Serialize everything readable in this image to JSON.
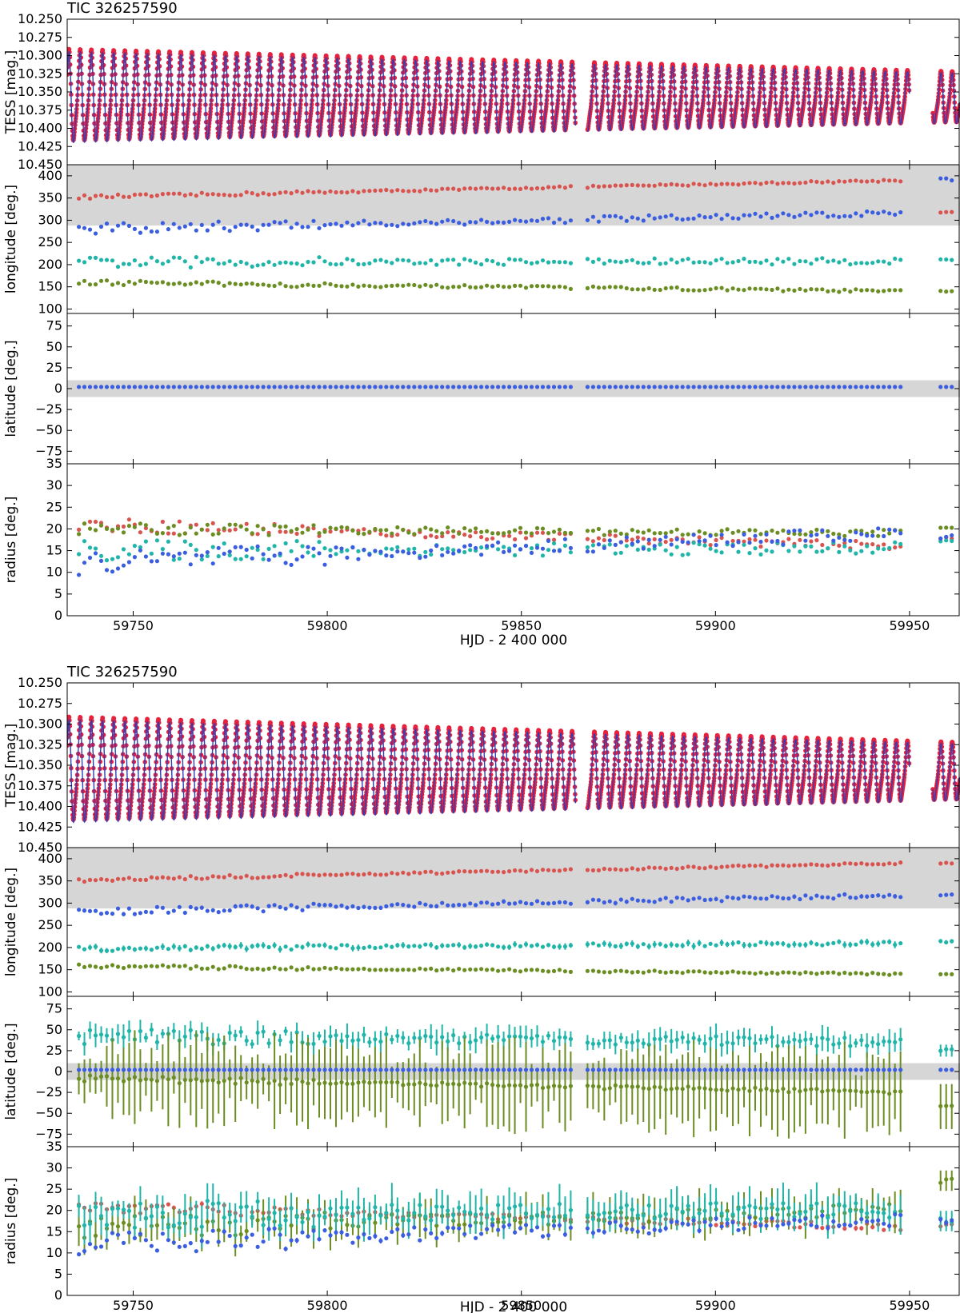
{
  "chart_data": [
    {
      "type": "composite",
      "figure": "top",
      "title": "TIC 326257590",
      "xlabel": "HJD - 2 400 000",
      "xlim": [
        59733,
        59963
      ],
      "xticks": [
        59750,
        59800,
        59850,
        59900,
        59950
      ],
      "gaps": [
        [
          59864,
          59867
        ],
        [
          59950,
          59956
        ]
      ],
      "panels": [
        {
          "kind": "lightcurve",
          "ylabel": "TESS [mag.]",
          "ylim": [
            10.45,
            10.25
          ],
          "yticks": [
            "10.250",
            "10.275",
            "10.300",
            "10.325",
            "10.350",
            "10.375",
            "10.400",
            "10.425",
            "10.450"
          ],
          "period_days": 2.88,
          "mean_mag": 10.36,
          "amplitude_start": 0.058,
          "amplitude_end": 0.032,
          "observed_color": "#e8203c",
          "model_color": "#2d3fb8"
        },
        {
          "kind": "spots",
          "ylabel": "longitude [deg.]",
          "ylim": [
            90,
            425
          ],
          "yticks": [
            "100",
            "150",
            "200",
            "250",
            "300",
            "350",
            "400"
          ],
          "band": [
            288,
            425
          ],
          "series": [
            {
              "color": "#d9534f",
              "start": 352,
              "end": 390,
              "scatter": 3,
              "err": 2,
              "last": 318
            },
            {
              "color": "#3b5ee0",
              "start": 280,
              "end": 315,
              "scatter": 9,
              "err": 2,
              "last": 392
            },
            {
              "color": "#1fb5a8",
              "start": 205,
              "end": 208,
              "scatter": 9,
              "err": 2,
              "last": 210
            },
            {
              "color": "#6b8e23",
              "start": 160,
              "end": 140,
              "scatter": 4,
              "err": 2,
              "last": 140
            }
          ]
        },
        {
          "kind": "spots",
          "ylabel": "latitude [deg.]",
          "ylim": [
            -90,
            90
          ],
          "yticks": [
            "75",
            "50",
            "25",
            "0",
            "−25",
            "−50",
            "−75"
          ],
          "band": [
            -10,
            10
          ],
          "series": [
            {
              "color": "#3b5ee0",
              "start": 2,
              "end": 2,
              "scatter": 0,
              "err": 0,
              "last": 2
            }
          ]
        },
        {
          "kind": "spots",
          "ylabel": "radius [deg.]",
          "ylim": [
            0,
            35
          ],
          "yticks": [
            "35",
            "30",
            "25",
            "20",
            "15",
            "10",
            "5",
            "0"
          ],
          "band": null,
          "series": [
            {
              "color": "#d9534f",
              "start": 21,
              "end": 16,
              "scatter": 1.2,
              "err": 0,
              "last": 18
            },
            {
              "color": "#6b8e23",
              "start": 20,
              "end": 19,
              "scatter": 1.0,
              "err": 0,
              "last": 20.5
            },
            {
              "color": "#1fb5a8",
              "start": 15,
              "end": 15.5,
              "scatter": 1.8,
              "err": 0,
              "last": 17
            },
            {
              "color": "#3b5ee0",
              "start": 12,
              "end": 19,
              "scatter": 2.0,
              "err": 0,
              "last": 18
            }
          ]
        }
      ]
    },
    {
      "type": "composite",
      "figure": "bottom",
      "title": "TIC 326257590",
      "xlabel": "HJD - 2 400 000",
      "xlim": [
        59733,
        59963
      ],
      "xticks": [
        59750,
        59800,
        59850,
        59900,
        59950
      ],
      "gaps": [
        [
          59864,
          59867
        ],
        [
          59950,
          59956
        ]
      ],
      "panels": [
        {
          "kind": "lightcurve",
          "ylabel": "TESS [mag.]",
          "ylim": [
            10.45,
            10.25
          ],
          "yticks": [
            "10.250",
            "10.275",
            "10.300",
            "10.325",
            "10.350",
            "10.375",
            "10.400",
            "10.425",
            "10.450"
          ],
          "period_days": 2.88,
          "mean_mag": 10.36,
          "amplitude_start": 0.058,
          "amplitude_end": 0.032,
          "observed_color": "#e8203c",
          "model_color": "#2d3fb8"
        },
        {
          "kind": "spots",
          "ylabel": "longitude [deg.]",
          "ylim": [
            90,
            425
          ],
          "yticks": [
            "100",
            "150",
            "200",
            "250",
            "300",
            "350",
            "400"
          ],
          "band": [
            288,
            425
          ],
          "series": [
            {
              "color": "#d9534f",
              "start": 352,
              "end": 390,
              "scatter": 3,
              "err": 3,
              "last": 390
            },
            {
              "color": "#3b5ee0",
              "start": 280,
              "end": 318,
              "scatter": 6,
              "err": 4,
              "last": 318
            },
            {
              "color": "#1fb5a8",
              "start": 198,
              "end": 210,
              "scatter": 5,
              "err": 6,
              "last": 213
            },
            {
              "color": "#6b8e23",
              "start": 158,
              "end": 140,
              "scatter": 3,
              "err": 3,
              "last": 140
            }
          ]
        },
        {
          "kind": "spots",
          "ylabel": "latitude [deg.]",
          "ylim": [
            -90,
            90
          ],
          "yticks": [
            "75",
            "50",
            "25",
            "0",
            "−25",
            "−50",
            "−75"
          ],
          "band": [
            -10,
            10
          ],
          "series": [
            {
              "color": "#1fb5a8",
              "start": 42,
              "end": 35,
              "scatter": 7,
              "err": 12,
              "last": 25
            },
            {
              "color": "#6b8e23",
              "start": -8,
              "end": -25,
              "scatter": 3,
              "err": 45,
              "last": -42
            },
            {
              "color": "#3b5ee0",
              "start": 2,
              "end": 2,
              "scatter": 0,
              "err": 0,
              "last": 2
            }
          ]
        },
        {
          "kind": "spots",
          "ylabel": "radius [deg.]",
          "ylim": [
            0,
            35
          ],
          "yticks": [
            "35",
            "30",
            "25",
            "20",
            "15",
            "10",
            "5",
            "0"
          ],
          "band": null,
          "series": [
            {
              "color": "#d9534f",
              "start": 21,
              "end": 16,
              "scatter": 1.0,
              "err": 0.5,
              "last": 16.5
            },
            {
              "color": "#6b8e23",
              "start": 16,
              "end": 20,
              "scatter": 2.0,
              "err": 4,
              "last": 27
            },
            {
              "color": "#1fb5a8",
              "start": 19,
              "end": 20,
              "scatter": 2.5,
              "err": 4,
              "last": 17.5
            },
            {
              "color": "#3b5ee0",
              "start": 12,
              "end": 18,
              "scatter": 2.0,
              "err": 0.5,
              "last": 17.5
            }
          ]
        }
      ]
    }
  ]
}
